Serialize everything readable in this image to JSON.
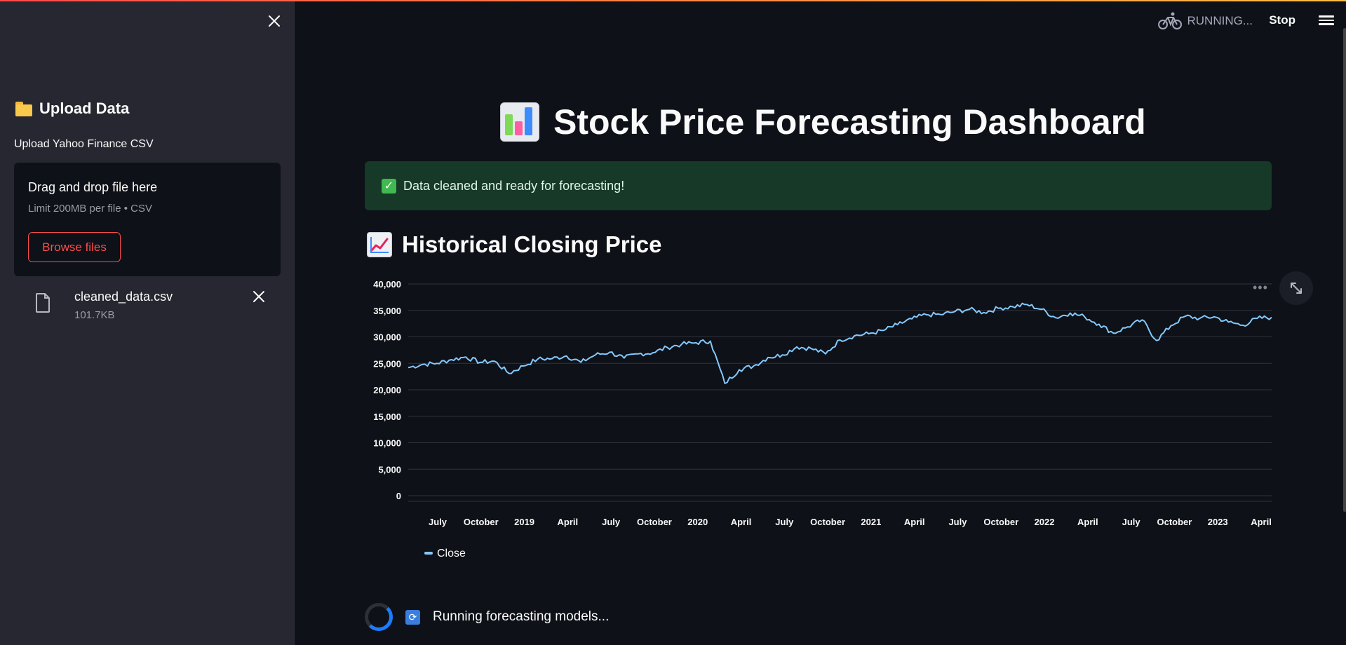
{
  "sidebar": {
    "header": "Upload Data",
    "uploader_label": "Upload Yahoo Finance CSV",
    "dropzone": {
      "title": "Drag and drop file here",
      "limit": "Limit 200MB per file • CSV",
      "browse_label": "Browse files"
    },
    "file": {
      "name": "cleaned_data.csv",
      "size": "101.7KB"
    }
  },
  "header": {
    "running_label": "RUNNING...",
    "stop_label": "Stop"
  },
  "main": {
    "title": "Stock Price Forecasting Dashboard",
    "success_message": "Data cleaned and ready for forecasting!",
    "section_title": "Historical Closing Price",
    "status_message": "Running forecasting models..."
  },
  "colors": {
    "accent": "#ff4b4b",
    "line": "#83c9ff",
    "success_bg": "#173928",
    "sidebar_bg": "#262730",
    "main_bg": "#0e1117"
  },
  "chart_data": {
    "type": "line",
    "title": "",
    "xlabel": "",
    "ylabel": "",
    "ylim": [
      0,
      40000
    ],
    "yticks": [
      "40,000",
      "35,000",
      "30,000",
      "25,000",
      "20,000",
      "15,000",
      "10,000",
      "5,000",
      "0"
    ],
    "xticks": [
      "July",
      "October",
      "2019",
      "April",
      "July",
      "October",
      "2020",
      "April",
      "July",
      "October",
      "2021",
      "April",
      "July",
      "October",
      "2022",
      "April",
      "July",
      "October",
      "2023",
      "April"
    ],
    "legend": "bottom-left",
    "grid": true,
    "series": [
      {
        "name": "Close",
        "x": [
          "2018-05",
          "2018-06",
          "2018-07",
          "2018-08",
          "2018-09",
          "2018-10",
          "2018-11",
          "2018-12",
          "2019-01",
          "2019-02",
          "2019-03",
          "2019-04",
          "2019-05",
          "2019-06",
          "2019-07",
          "2019-08",
          "2019-09",
          "2019-10",
          "2019-11",
          "2019-12",
          "2020-01",
          "2020-02",
          "2020-03",
          "2020-04",
          "2020-05",
          "2020-06",
          "2020-07",
          "2020-08",
          "2020-09",
          "2020-10",
          "2020-11",
          "2020-12",
          "2021-01",
          "2021-02",
          "2021-03",
          "2021-04",
          "2021-05",
          "2021-06",
          "2021-07",
          "2021-08",
          "2021-09",
          "2021-10",
          "2021-11",
          "2021-12",
          "2022-01",
          "2022-02",
          "2022-03",
          "2022-04",
          "2022-05",
          "2022-06",
          "2022-07",
          "2022-08",
          "2022-09",
          "2022-10",
          "2022-11",
          "2022-12",
          "2023-01",
          "2023-02",
          "2023-03",
          "2023-04",
          "2023-05"
        ],
        "values": [
          24200,
          24800,
          25000,
          25700,
          26200,
          25200,
          25400,
          23100,
          24500,
          25800,
          25900,
          26400,
          25200,
          26600,
          27100,
          26000,
          26800,
          27000,
          28000,
          28600,
          28900,
          29200,
          21200,
          23800,
          24500,
          26100,
          26600,
          28100,
          27800,
          26800,
          29400,
          30200,
          30600,
          31200,
          32300,
          33400,
          34200,
          34200,
          34800,
          35200,
          34600,
          35400,
          35700,
          36100,
          35200,
          33600,
          34500,
          33800,
          32400,
          30700,
          31900,
          33200,
          29300,
          32100,
          33900,
          33500,
          33800,
          32800,
          32200,
          33500,
          33700
        ]
      }
    ]
  }
}
